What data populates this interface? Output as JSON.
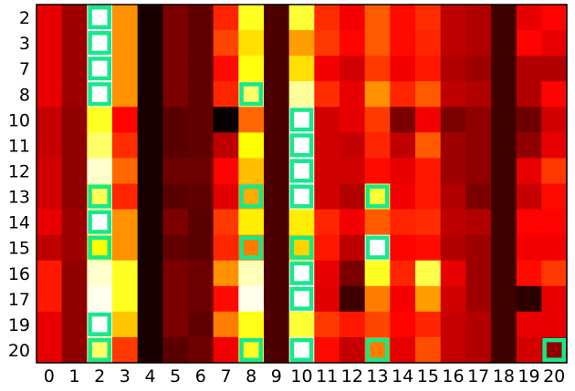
{
  "chart_data": {
    "type": "heatmap",
    "colormap": "hot",
    "value_range": [
      0,
      1
    ],
    "x_labels": [
      "0",
      "1",
      "2",
      "3",
      "4",
      "5",
      "6",
      "7",
      "8",
      "9",
      "10",
      "11",
      "12",
      "13",
      "14",
      "15",
      "16",
      "17",
      "18",
      "19",
      "20"
    ],
    "y_labels": [
      "2",
      "3",
      "7",
      "8",
      "10",
      "11",
      "12",
      "13",
      "14",
      "15",
      "16",
      "17",
      "19",
      "20"
    ],
    "values": [
      [
        0.33,
        0.22,
        1.0,
        0.58,
        0.02,
        0.17,
        0.13,
        0.42,
        0.78,
        0.1,
        0.8,
        0.43,
        0.35,
        0.5,
        0.38,
        0.43,
        0.27,
        0.25,
        0.08,
        0.33,
        0.37
      ],
      [
        0.33,
        0.22,
        1.0,
        0.58,
        0.02,
        0.17,
        0.13,
        0.47,
        0.7,
        0.1,
        0.6,
        0.45,
        0.37,
        0.5,
        0.38,
        0.42,
        0.27,
        0.25,
        0.08,
        0.37,
        0.33
      ],
      [
        0.33,
        0.22,
        1.0,
        0.58,
        0.02,
        0.17,
        0.13,
        0.38,
        0.76,
        0.1,
        0.7,
        0.35,
        0.3,
        0.45,
        0.35,
        0.4,
        0.25,
        0.22,
        0.08,
        0.25,
        0.25
      ],
      [
        0.33,
        0.22,
        1.0,
        0.58,
        0.02,
        0.17,
        0.13,
        0.42,
        0.85,
        0.1,
        0.9,
        0.43,
        0.33,
        0.58,
        0.42,
        0.5,
        0.27,
        0.25,
        0.08,
        0.25,
        0.37
      ],
      [
        0.28,
        0.2,
        0.78,
        0.37,
        0.02,
        0.12,
        0.13,
        0.0,
        0.52,
        0.1,
        1.0,
        0.3,
        0.33,
        0.45,
        0.17,
        0.35,
        0.17,
        0.2,
        0.08,
        0.15,
        0.3
      ],
      [
        0.28,
        0.2,
        0.85,
        0.43,
        0.02,
        0.12,
        0.13,
        0.27,
        0.75,
        0.1,
        1.0,
        0.3,
        0.28,
        0.42,
        0.27,
        0.5,
        0.22,
        0.2,
        0.08,
        0.2,
        0.33
      ],
      [
        0.3,
        0.2,
        0.95,
        0.52,
        0.02,
        0.15,
        0.15,
        0.37,
        0.65,
        0.1,
        1.0,
        0.3,
        0.3,
        0.38,
        0.33,
        0.4,
        0.22,
        0.2,
        0.08,
        0.33,
        0.45
      ],
      [
        0.3,
        0.2,
        0.83,
        0.42,
        0.02,
        0.12,
        0.13,
        0.32,
        0.62,
        0.1,
        1.0,
        0.3,
        0.25,
        0.8,
        0.35,
        0.4,
        0.25,
        0.17,
        0.08,
        0.28,
        0.38
      ],
      [
        0.33,
        0.22,
        1.0,
        0.58,
        0.02,
        0.17,
        0.12,
        0.45,
        0.72,
        0.1,
        0.72,
        0.42,
        0.35,
        0.5,
        0.42,
        0.43,
        0.27,
        0.25,
        0.08,
        0.37,
        0.37
      ],
      [
        0.27,
        0.22,
        0.75,
        0.58,
        0.02,
        0.13,
        0.12,
        0.42,
        0.55,
        0.1,
        0.68,
        0.4,
        0.27,
        1.0,
        0.37,
        0.38,
        0.25,
        0.22,
        0.08,
        0.35,
        0.35
      ],
      [
        0.4,
        0.2,
        0.95,
        0.78,
        0.02,
        0.17,
        0.15,
        0.58,
        0.93,
        0.1,
        1.0,
        0.33,
        0.17,
        0.78,
        0.42,
        0.82,
        0.33,
        0.22,
        0.08,
        0.38,
        0.45
      ],
      [
        0.4,
        0.2,
        0.98,
        0.78,
        0.02,
        0.17,
        0.15,
        0.38,
        0.98,
        0.1,
        1.0,
        0.32,
        0.08,
        0.55,
        0.35,
        0.6,
        0.3,
        0.22,
        0.08,
        0.05,
        0.33
      ],
      [
        0.33,
        0.2,
        1.0,
        0.66,
        0.02,
        0.17,
        0.13,
        0.55,
        0.77,
        0.1,
        0.8,
        0.45,
        0.4,
        0.47,
        0.37,
        0.42,
        0.28,
        0.25,
        0.08,
        0.33,
        0.33
      ],
      [
        0.33,
        0.2,
        0.85,
        0.45,
        0.02,
        0.12,
        0.15,
        0.35,
        0.78,
        0.1,
        1.0,
        0.38,
        0.28,
        0.55,
        0.33,
        0.48,
        0.28,
        0.25,
        0.08,
        0.3,
        0.2
      ]
    ],
    "highlight_color": "#17e88c",
    "highlighted_cells": [
      {
        "row": "2",
        "col": "2"
      },
      {
        "row": "3",
        "col": "2"
      },
      {
        "row": "7",
        "col": "2"
      },
      {
        "row": "8",
        "col": "2"
      },
      {
        "row": "8",
        "col": "8"
      },
      {
        "row": "10",
        "col": "10"
      },
      {
        "row": "11",
        "col": "10"
      },
      {
        "row": "12",
        "col": "10"
      },
      {
        "row": "13",
        "col": "2"
      },
      {
        "row": "13",
        "col": "8"
      },
      {
        "row": "13",
        "col": "10"
      },
      {
        "row": "13",
        "col": "13"
      },
      {
        "row": "14",
        "col": "2"
      },
      {
        "row": "15",
        "col": "2"
      },
      {
        "row": "15",
        "col": "8"
      },
      {
        "row": "15",
        "col": "10"
      },
      {
        "row": "15",
        "col": "13"
      },
      {
        "row": "16",
        "col": "10"
      },
      {
        "row": "17",
        "col": "10"
      },
      {
        "row": "19",
        "col": "2"
      },
      {
        "row": "20",
        "col": "2"
      },
      {
        "row": "20",
        "col": "8"
      },
      {
        "row": "20",
        "col": "10"
      },
      {
        "row": "20",
        "col": "13"
      },
      {
        "row": "20",
        "col": "20"
      }
    ],
    "title": "",
    "xlabel": "",
    "ylabel": "",
    "grid": false,
    "legend": "none"
  }
}
